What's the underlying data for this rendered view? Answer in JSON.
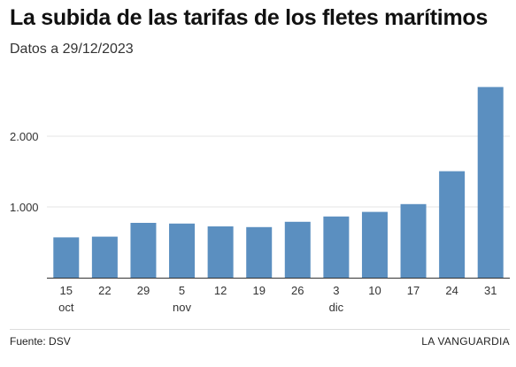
{
  "title": "La subida de las tarifas de los fletes marítimos",
  "subtitle": "Datos a 29/12/2023",
  "footer": {
    "source": "Fuente: DSV",
    "brand": "LA VANGUARDIA"
  },
  "chart_data": {
    "type": "bar",
    "title": "La subida de las tarifas de los fletes marítimos",
    "subtitle": "Datos a 29/12/2023",
    "categories": [
      "15",
      "22",
      "29",
      "5",
      "12",
      "19",
      "26",
      "3",
      "10",
      "17",
      "24",
      "31"
    ],
    "months": [
      {
        "label": "oct",
        "index": 0
      },
      {
        "label": "nov",
        "index": 3
      },
      {
        "label": "dic",
        "index": 7
      }
    ],
    "values": [
      570,
      580,
      775,
      765,
      725,
      715,
      790,
      865,
      930,
      1040,
      1505,
      2695
    ],
    "ylim": [
      0,
      2800
    ],
    "yticks": [
      1000,
      2000
    ],
    "ytick_labels": [
      "1.000",
      "2.000"
    ],
    "grid": true,
    "bar_color": "#5b8fc0",
    "xlabel": "",
    "ylabel": ""
  }
}
